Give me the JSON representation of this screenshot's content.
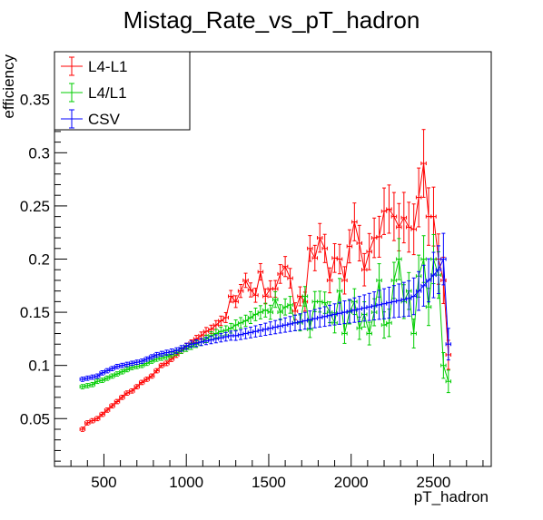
{
  "chart_data": {
    "type": "line",
    "title": "Mistag_Rate_vs_pT_hadron",
    "xlabel": "pT_hadron",
    "ylabel": "efficiency",
    "xlim": [
      200,
      2850
    ],
    "ylim": [
      0.005,
      0.395
    ],
    "x_ticks": [
      500,
      1000,
      1500,
      2000,
      2500
    ],
    "y_ticks": [
      0.05,
      0.1,
      0.15,
      0.2,
      0.25,
      0.3,
      0.35
    ],
    "x_tick_labels": [
      "500",
      "1000",
      "1500",
      "2000",
      "2500"
    ],
    "y_tick_labels": [
      "0.05",
      "0.1",
      "0.15",
      "0.2",
      "0.25",
      "0.3",
      "0.35"
    ],
    "grid": false,
    "legend_position": "top-left",
    "x": [
      370,
      400,
      430,
      460,
      490,
      520,
      550,
      580,
      610,
      640,
      670,
      700,
      730,
      760,
      790,
      820,
      850,
      880,
      910,
      940,
      970,
      1000,
      1030,
      1060,
      1090,
      1120,
      1150,
      1180,
      1210,
      1240,
      1270,
      1300,
      1330,
      1360,
      1390,
      1420,
      1450,
      1480,
      1510,
      1540,
      1570,
      1600,
      1630,
      1660,
      1690,
      1720,
      1750,
      1780,
      1810,
      1840,
      1870,
      1900,
      1930,
      1960,
      1990,
      2020,
      2050,
      2080,
      2110,
      2140,
      2170,
      2200,
      2230,
      2260,
      2290,
      2320,
      2350,
      2380,
      2410,
      2440,
      2470,
      2500,
      2530,
      2560,
      2590
    ],
    "series": [
      {
        "name": "L4-L1",
        "color": "#ff0000",
        "values": [
          0.04,
          0.046,
          0.048,
          0.05,
          0.054,
          0.058,
          0.062,
          0.066,
          0.07,
          0.074,
          0.076,
          0.08,
          0.084,
          0.087,
          0.09,
          0.095,
          0.1,
          0.102,
          0.106,
          0.11,
          0.114,
          0.118,
          0.121,
          0.125,
          0.128,
          0.132,
          0.134,
          0.138,
          0.142,
          0.145,
          0.165,
          0.16,
          0.17,
          0.18,
          0.171,
          0.166,
          0.188,
          0.165,
          0.172,
          0.172,
          0.186,
          0.193,
          0.182,
          0.151,
          0.165,
          0.16,
          0.21,
          0.201,
          0.22,
          0.21,
          0.18,
          0.201,
          0.2,
          0.18,
          0.212,
          0.235,
          0.215,
          0.19,
          0.207,
          0.22,
          0.221,
          0.245,
          0.247,
          0.24,
          0.23,
          0.239,
          0.23,
          0.228,
          0.258,
          0.29,
          0.24,
          0.24,
          0.2,
          0.18,
          0.11
        ]
      },
      {
        "name": "L4/L1",
        "color": "#00cc00",
        "values": [
          0.08,
          0.081,
          0.082,
          0.085,
          0.086,
          0.088,
          0.09,
          0.092,
          0.094,
          0.096,
          0.098,
          0.099,
          0.1,
          0.102,
          0.104,
          0.106,
          0.107,
          0.108,
          0.11,
          0.112,
          0.114,
          0.116,
          0.118,
          0.12,
          0.122,
          0.125,
          0.128,
          0.13,
          0.132,
          0.133,
          0.135,
          0.138,
          0.14,
          0.142,
          0.145,
          0.148,
          0.15,
          0.152,
          0.15,
          0.162,
          0.15,
          0.155,
          0.157,
          0.14,
          0.14,
          0.165,
          0.134,
          0.16,
          0.16,
          0.159,
          0.15,
          0.14,
          0.17,
          0.13,
          0.15,
          0.16,
          0.135,
          0.148,
          0.13,
          0.15,
          0.18,
          0.138,
          0.14,
          0.18,
          0.2,
          0.16,
          0.17,
          0.13,
          0.184,
          0.2,
          0.155,
          0.2,
          0.185,
          0.1,
          0.085
        ]
      },
      {
        "name": "CSV",
        "color": "#0000ff",
        "values": [
          0.087,
          0.088,
          0.089,
          0.09,
          0.093,
          0.095,
          0.097,
          0.099,
          0.1,
          0.101,
          0.102,
          0.103,
          0.104,
          0.106,
          0.108,
          0.11,
          0.111,
          0.112,
          0.113,
          0.114,
          0.116,
          0.118,
          0.12,
          0.121,
          0.122,
          0.123,
          0.124,
          0.125,
          0.126,
          0.127,
          0.128,
          0.128,
          0.129,
          0.13,
          0.131,
          0.132,
          0.133,
          0.134,
          0.135,
          0.136,
          0.137,
          0.138,
          0.139,
          0.14,
          0.141,
          0.142,
          0.143,
          0.144,
          0.145,
          0.146,
          0.147,
          0.148,
          0.149,
          0.15,
          0.151,
          0.152,
          0.153,
          0.154,
          0.155,
          0.156,
          0.157,
          0.158,
          0.159,
          0.16,
          0.161,
          0.162,
          0.163,
          0.165,
          0.17,
          0.175,
          0.18,
          0.185,
          0.19,
          0.2,
          0.12
        ]
      }
    ]
  }
}
